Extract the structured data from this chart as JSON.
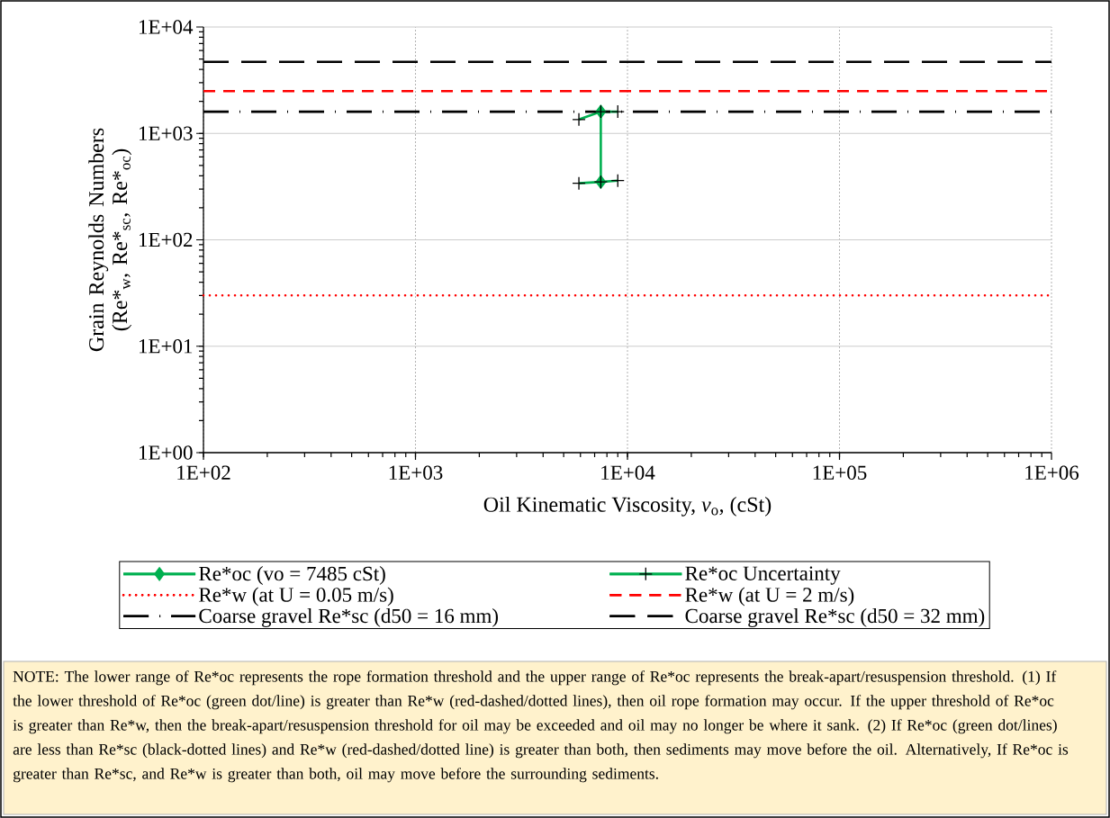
{
  "chart_data": {
    "type": "line",
    "xlabel": "Oil Kinematic Viscosity, *v*$_{o}$, (cSt)",
    "ylabel": "Grain Reynolds Numbers (Re*$_{w}$, Re*$_{sc}$, Re*$_{oc}$)",
    "log": "xy",
    "grid": true,
    "legend": "bottom",
    "xlim": [
      100,
      1000000
    ],
    "ylim": [
      1,
      10000
    ],
    "xticks": [
      {
        "value": 100,
        "label": "1E+02"
      },
      {
        "value": 1000,
        "label": "1E+03"
      },
      {
        "value": 10000,
        "label": "1E+04"
      },
      {
        "value": 100000,
        "label": "1E+05"
      },
      {
        "value": 1000000,
        "label": "1E+06"
      }
    ],
    "yticks": [
      {
        "value": 1,
        "label": "1E+00"
      },
      {
        "value": 10,
        "label": "1E+01"
      },
      {
        "value": 100,
        "label": "1E+02"
      },
      {
        "value": 1000,
        "label": "1E+03"
      },
      {
        "value": 10000,
        "label": "1E+04"
      }
    ],
    "series": [
      {
        "name": "Re*oc (vo = 7485 cSt)",
        "color": "#00b050",
        "x": [
          7485,
          7485
        ],
        "values": [
          350,
          1600
        ],
        "marker": "diamond",
        "line_style": "solid"
      },
      {
        "name": "Re*oc Uncertainty",
        "color": "#00b050",
        "x": [
          5900,
          7485,
          9000,
          null,
          5900,
          7485,
          9000
        ],
        "values": [
          1350,
          1600,
          1600,
          null,
          340,
          350,
          360
        ],
        "marker": "cross",
        "line_style": "solid"
      },
      {
        "name": "Re*w (at U = 0.05 m/s)",
        "color": "#ff0000",
        "x": [
          100,
          1000000
        ],
        "values": [
          30,
          30
        ],
        "marker": "none",
        "line_style": "dotted"
      },
      {
        "name": "Re*w (at U = 2 m/s)",
        "color": "#ff0000",
        "x": [
          100,
          1000000
        ],
        "values": [
          2500,
          2500
        ],
        "marker": "none",
        "line_style": "dashed"
      },
      {
        "name": "Coarse gravel Re*sc (d50 = 16 mm)",
        "color": "#000000",
        "x": [
          100,
          1000000
        ],
        "values": [
          1600,
          1600
        ],
        "marker": "none",
        "line_style": "dash dot"
      },
      {
        "name": "Coarse gravel Re*sc (d50 = 32 mm)",
        "color": "#000000",
        "x": [
          100,
          1000000
        ],
        "values": [
          4700,
          4700
        ],
        "marker": "none",
        "line_style": "long dashed"
      }
    ],
    "annotations": [
      "NOTE: The lower range of Re*oc represents the rope formation threshold and the upper range of Re*oc represents the break-apart/resuspension threshold. (1) If the lower threshold of Re*oc (green dot/line) is greater than Re*w  (red-dashed/dotted lines), then oil rope formation may occur. If the upper threshold of Re*oc is greater than Re*w, then the break-apart/resuspension threshold for oil may be exceeded and oil may no longer be where it sank. (2) If Re*oc (green dot/lines) are less than Re*sc (black-dotted lines) and Re*w (red-dashed/dotted line) is greater than both, then sediments may move before the oil. Alternatively, If Re*oc is greater than Re*sc, and Re*w is greater than both, oil may move before the surrounding sediments."
    ]
  }
}
